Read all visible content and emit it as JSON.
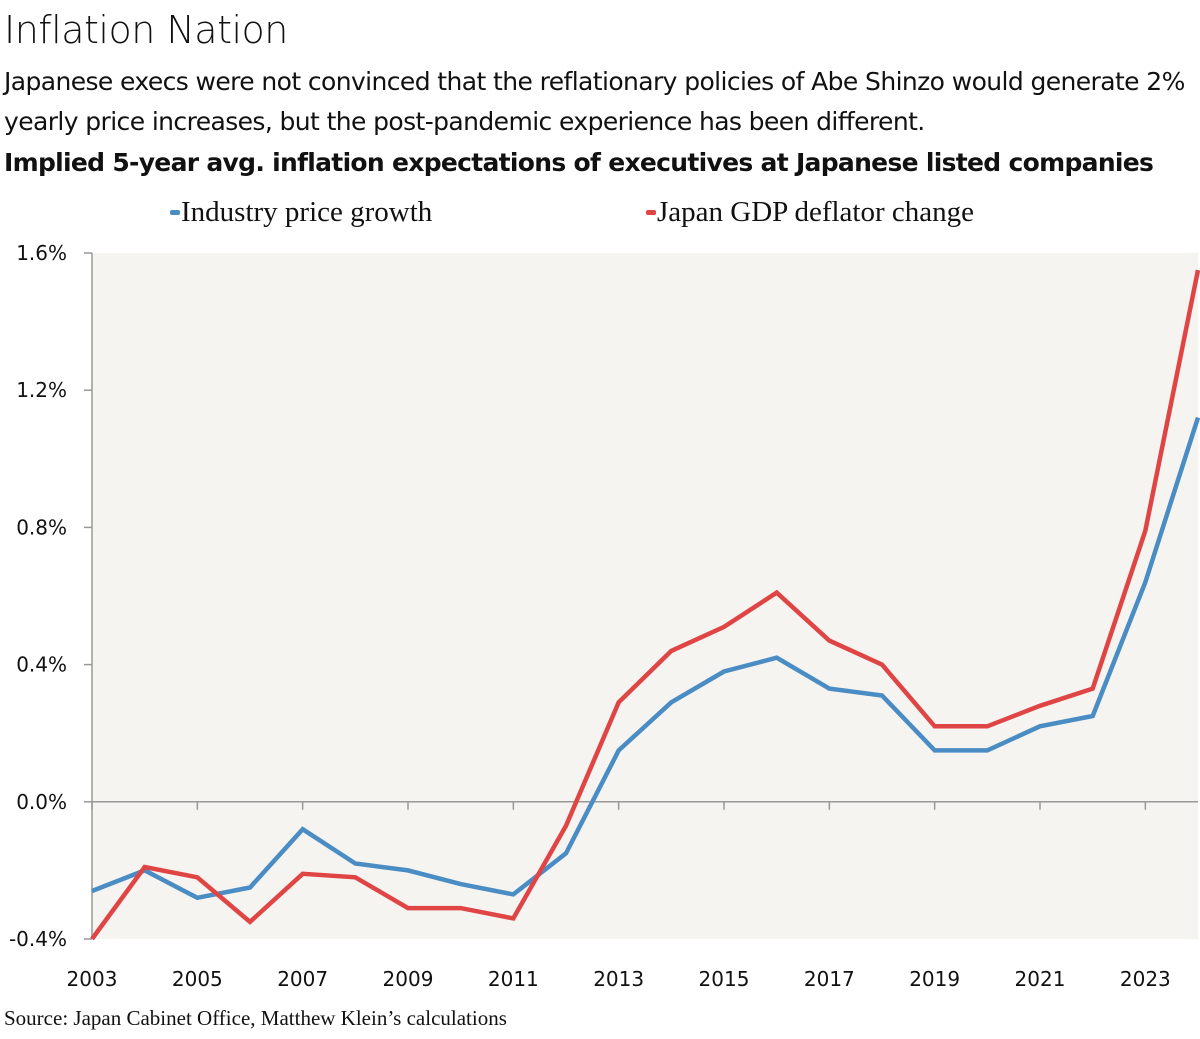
{
  "header": {
    "title": "Inflation Nation",
    "subtitle": "Japanese execs were not convinced that the reflationary policies of Abe Shinzo would generate 2% yearly price increases, but the post-pandemic experience has been different."
  },
  "footer": {
    "source": "Source: Japan Cabinet Office, Matthew Klein’s calculations"
  },
  "chart_data": {
    "type": "line",
    "title": "Implied 5-year avg. inflation expectations of executives at Japanese listed companies",
    "xlabel": "",
    "ylabel": "",
    "x": [
      2003,
      2004,
      2005,
      2006,
      2007,
      2008,
      2009,
      2010,
      2011,
      2012,
      2013,
      2014,
      2015,
      2016,
      2017,
      2018,
      2019,
      2020,
      2021,
      2022,
      2023,
      2024
    ],
    "xlim": [
      2003,
      2024
    ],
    "ylim": [
      -0.4,
      1.6
    ],
    "y_unit": "%",
    "x_ticks": [
      "2003",
      "2005",
      "2007",
      "2009",
      "2011",
      "2013",
      "2015",
      "2017",
      "2019",
      "2021",
      "2023"
    ],
    "y_ticks": [
      "-0.4%",
      "0.0%",
      "0.4%",
      "0.8%",
      "1.2%",
      "1.6%"
    ],
    "y_tick_values": [
      -0.4,
      0.0,
      0.4,
      0.8,
      1.2,
      1.6
    ],
    "grid": false,
    "zero_line": true,
    "legend_position": "top",
    "plot_background": "#f5f4f0",
    "series": [
      {
        "name": "Industry price growth",
        "color": "#4a8cc4",
        "values": [
          -0.26,
          -0.2,
          -0.28,
          -0.25,
          -0.08,
          -0.18,
          -0.2,
          -0.24,
          -0.27,
          -0.15,
          0.15,
          0.29,
          0.38,
          0.42,
          0.33,
          0.31,
          0.15,
          0.15,
          0.22,
          0.25,
          0.64,
          1.12
        ]
      },
      {
        "name": "Japan GDP deflator change",
        "color": "#e04545",
        "values": [
          -0.4,
          -0.19,
          -0.22,
          -0.35,
          -0.21,
          -0.22,
          -0.31,
          -0.31,
          -0.34,
          -0.07,
          0.29,
          0.44,
          0.51,
          0.61,
          0.47,
          0.4,
          0.22,
          0.22,
          0.28,
          0.33,
          0.79,
          1.55
        ]
      }
    ]
  }
}
